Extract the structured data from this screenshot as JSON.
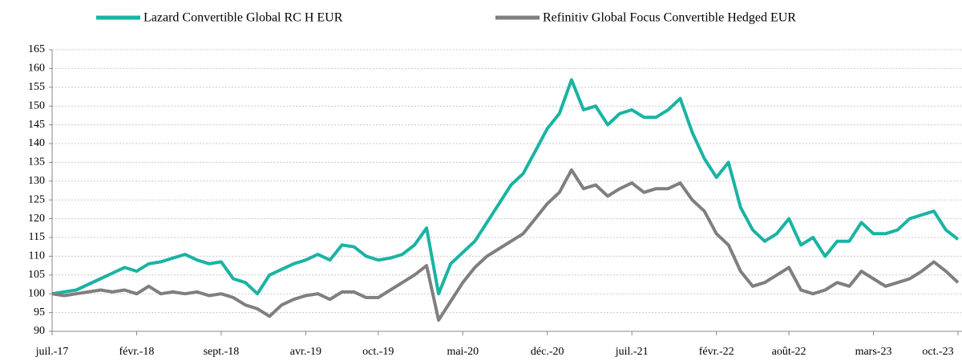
{
  "chart_data": {
    "type": "line",
    "categories": [
      "juil.-17",
      null,
      null,
      null,
      null,
      null,
      null,
      "févr.-18",
      null,
      null,
      null,
      null,
      null,
      null,
      "sept.-18",
      null,
      null,
      null,
      null,
      null,
      null,
      "avr.-19",
      null,
      null,
      null,
      null,
      null,
      "oct.-19",
      null,
      null,
      null,
      null,
      null,
      null,
      "mai-20",
      null,
      null,
      null,
      null,
      null,
      null,
      "déc.-20",
      null,
      null,
      null,
      null,
      null,
      null,
      "juil.-21",
      null,
      null,
      null,
      null,
      null,
      null,
      "févr.-22",
      null,
      null,
      null,
      null,
      null,
      "août-22",
      null,
      null,
      null,
      null,
      null,
      null,
      "mars-23",
      null,
      null,
      null,
      null,
      null,
      null,
      "oct.-23"
    ],
    "series": [
      {
        "name": "Lazard Convertible Global RC H EUR",
        "color": "#1ab3a3",
        "values": [
          100,
          100.5,
          101,
          102.5,
          104,
          105.5,
          107,
          106,
          108,
          108.5,
          109.5,
          110.5,
          109,
          108,
          108.5,
          104,
          103,
          100,
          105,
          106.5,
          108,
          109,
          110.5,
          109,
          113,
          112.5,
          110,
          109,
          109.5,
          110.5,
          113,
          117.5,
          100,
          108,
          111,
          114,
          119,
          124,
          129,
          132,
          138,
          144,
          148,
          157,
          149,
          150,
          145,
          148,
          149,
          147,
          147,
          149,
          152,
          143,
          136,
          131,
          135,
          123,
          117,
          114,
          116,
          120,
          113,
          115,
          110,
          114,
          114,
          119,
          116,
          116,
          117,
          120,
          121,
          122,
          117,
          114.5
        ]
      },
      {
        "name": "Refinitiv Global Focus Convertible Hedged EUR",
        "color": "#7f7f7f",
        "values": [
          100,
          99.5,
          100,
          100.5,
          101,
          100.5,
          101,
          100,
          102,
          100,
          100.5,
          100,
          100.5,
          99.5,
          100,
          99,
          97,
          96,
          94,
          97,
          98.5,
          99.5,
          100,
          98.5,
          100.5,
          100.5,
          99,
          99,
          101,
          103,
          105,
          107.5,
          93,
          98,
          103,
          107,
          110,
          112,
          114,
          116,
          120,
          124,
          127,
          133,
          128,
          129,
          126,
          128,
          129.5,
          127,
          128,
          128,
          129.5,
          125,
          122,
          116,
          113,
          106,
          102,
          103,
          105,
          107,
          101,
          100,
          101,
          103,
          102,
          106,
          104,
          102,
          103,
          104,
          106,
          108.5,
          106,
          103
        ]
      }
    ],
    "ylim": [
      90,
      165
    ],
    "yticks": [
      90,
      95,
      100,
      105,
      110,
      115,
      120,
      125,
      130,
      135,
      140,
      145,
      150,
      155,
      160,
      165
    ],
    "grid": true,
    "legend": "top"
  }
}
